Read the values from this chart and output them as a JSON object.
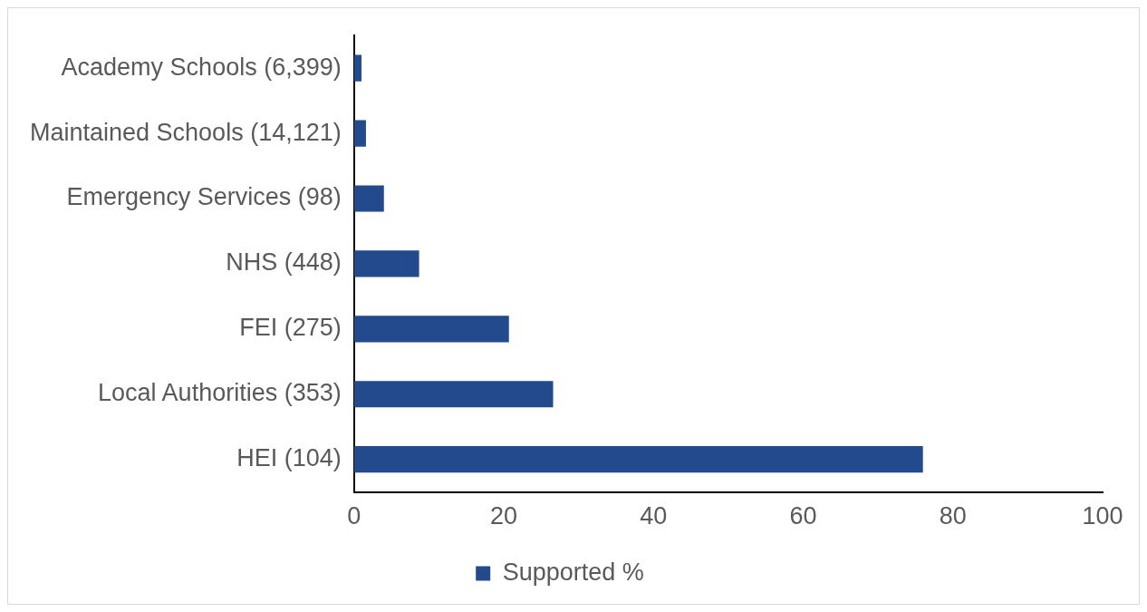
{
  "chart_data": {
    "type": "bar",
    "orientation": "horizontal",
    "categories": [
      "Academy Schools (6,399)",
      "Maintained Schools (14,121)",
      "Emergency Services (98)",
      "NHS (448)",
      "FEI (275)",
      "Local Authorities (353)",
      "HEI (104)"
    ],
    "series": [
      {
        "name": "Supported %",
        "color": "#224a8c",
        "values": [
          1.0,
          1.6,
          4.0,
          8.7,
          20.7,
          26.6,
          76.0
        ]
      }
    ],
    "xlim": [
      0,
      100
    ],
    "xticks": [
      0,
      20,
      40,
      60,
      80,
      100
    ],
    "grid": false,
    "legend": "bottom"
  }
}
